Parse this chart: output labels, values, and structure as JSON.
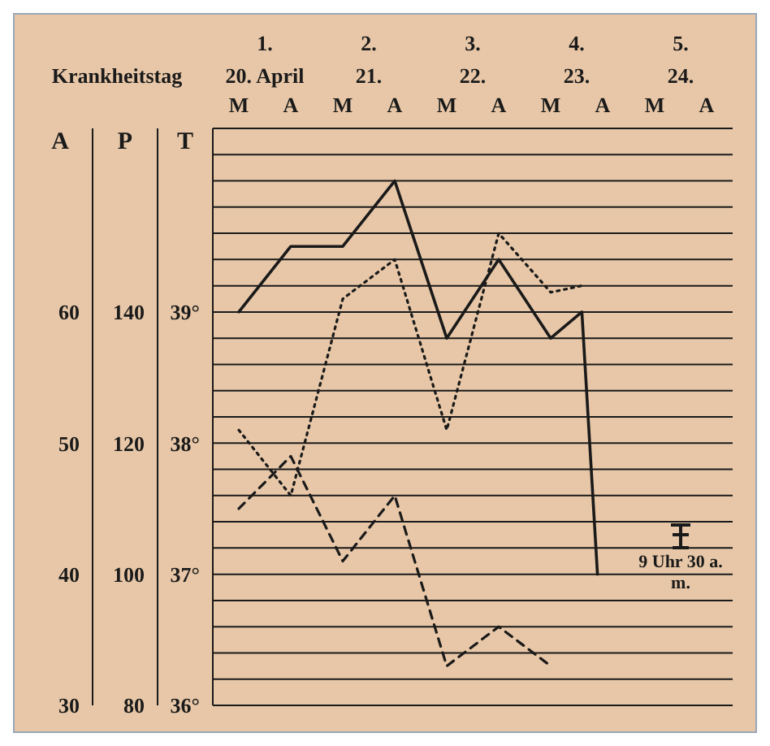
{
  "chart_data": {
    "type": "line",
    "xlabel": "Krankheitstag",
    "ylabel": "T",
    "y2label": "P",
    "y3label": "A",
    "xlim": [
      0.5,
      5.5
    ],
    "xticks": [
      {
        "value": 1,
        "label": "1."
      },
      {
        "value": 2,
        "label": "2."
      },
      {
        "value": 3,
        "label": "3."
      },
      {
        "value": 4,
        "label": "4."
      },
      {
        "value": 5,
        "label": "5."
      }
    ],
    "ylim": [
      36,
      40.4
    ],
    "yticks": [
      {
        "value": 36,
        "label": "36°"
      },
      {
        "value": 36.2,
        "label": null
      },
      {
        "value": 36.4,
        "label": null
      },
      {
        "value": 36.6,
        "label": null
      },
      {
        "value": 36.8,
        "label": null
      },
      {
        "value": 37,
        "label": "37°"
      },
      {
        "value": 37.2,
        "label": null
      },
      {
        "value": 37.4,
        "label": null
      },
      {
        "value": 37.6,
        "label": null
      },
      {
        "value": 37.8,
        "label": null
      },
      {
        "value": 38,
        "label": "38°"
      },
      {
        "value": 38.2,
        "label": null
      },
      {
        "value": 38.4,
        "label": null
      },
      {
        "value": 38.6,
        "label": null
      },
      {
        "value": 38.8,
        "label": null
      },
      {
        "value": 39,
        "label": "39°"
      },
      {
        "value": 39.2,
        "label": null
      },
      {
        "value": 39.4,
        "label": null
      },
      {
        "value": 39.6,
        "label": null
      },
      {
        "value": 39.8,
        "label": null
      },
      {
        "value": 40,
        "label": null
      },
      {
        "value": 40.2,
        "label": null
      },
      {
        "value": 40.4,
        "label": null
      }
    ],
    "y2lim": [
      80,
      168
    ],
    "y2ticks": [
      80,
      100,
      120,
      140
    ],
    "y3lim": [
      30,
      74
    ],
    "y3ticks": [
      30,
      40,
      50,
      60
    ],
    "grid": "y",
    "marker": "none",
    "series": [
      {
        "type": "line",
        "color": "#1a1a1a",
        "line_style": "solid",
        "x": [
          0.75,
          1.25,
          1.75,
          2.25,
          2.75,
          3.25,
          3.75,
          4.05,
          4.2
        ],
        "values": [
          39.0,
          39.5,
          39.5,
          40.0,
          38.8,
          39.4,
          38.8,
          39.0,
          37.0
        ]
      },
      {
        "type": "line",
        "color": "#1a1a1a",
        "line_style": "dotted",
        "axis": "y2",
        "x": [
          0.75,
          1.25,
          1.75,
          2.25,
          2.75,
          3.25,
          3.75,
          4.05
        ],
        "values": [
          122,
          112,
          142,
          148,
          122,
          152,
          143,
          144
        ]
      },
      {
        "type": "line",
        "color": "#1a1a1a",
        "line_style": "dashed",
        "axis": "y3",
        "x": [
          0.75,
          1.25,
          1.75,
          2.25,
          2.75,
          3.25,
          3.75
        ],
        "values": [
          45,
          49,
          41,
          46,
          33,
          36,
          33
        ]
      }
    ],
    "annotations": [
      "20. April",
      "M",
      "A",
      "21.",
      "M",
      "A",
      "22.",
      "M",
      "A",
      "23.",
      "M",
      "A",
      "24.",
      "M",
      "A",
      "9 Uhr 30 a. m."
    ]
  }
}
